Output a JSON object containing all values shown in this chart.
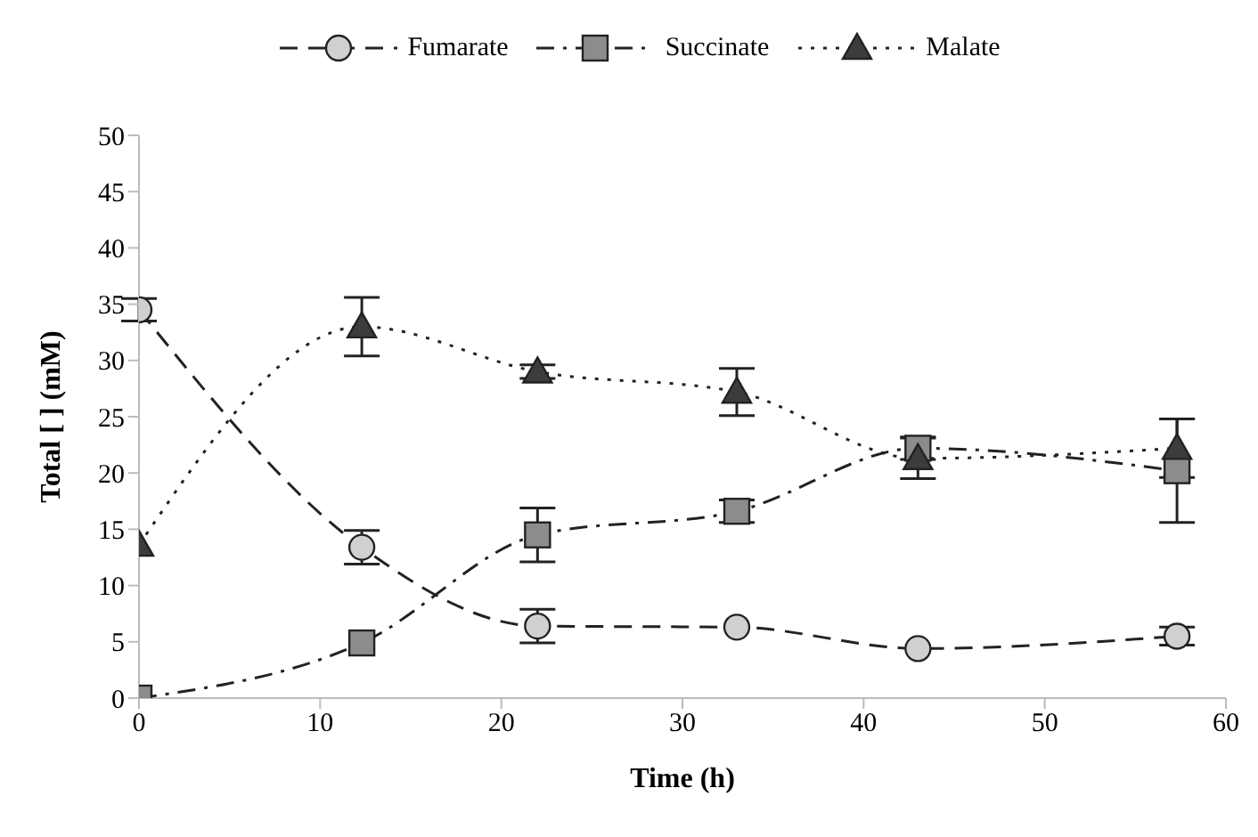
{
  "chart_data": {
    "type": "line",
    "xlabel": "Time (h)",
    "ylabel": "Total [ ] (mM)",
    "x": [
      0,
      12.3,
      22,
      33,
      43,
      57.3
    ],
    "xlim": [
      0,
      60
    ],
    "xticks": [
      0,
      10,
      20,
      30,
      40,
      50,
      60
    ],
    "ylim": [
      0,
      50
    ],
    "yticks": [
      0,
      5,
      10,
      15,
      20,
      25,
      30,
      35,
      40,
      45,
      50
    ],
    "grid": false,
    "legend": "top",
    "series": [
      {
        "name": "Fumarate",
        "color": "#d0d0d0",
        "marker": "circle",
        "line_style": "dashed",
        "values": [
          34.5,
          13.4,
          6.4,
          6.3,
          4.4,
          5.5
        ],
        "errors": [
          1,
          1.5,
          1.5,
          null,
          null,
          0.8
        ]
      },
      {
        "name": "Succinate",
        "color": "#8c8c8c",
        "marker": "square",
        "line_style": "dashdot",
        "values": [
          0,
          4.9,
          14.5,
          16.6,
          22.2,
          20.2
        ],
        "errors": [
          null,
          null,
          2.4,
          1,
          1,
          4.6
        ]
      },
      {
        "name": "Malate",
        "color": "#3c3c3c",
        "marker": "triangle",
        "line_style": "dotted",
        "values": [
          13.6,
          33,
          29,
          27.2,
          21.3,
          22.2
        ],
        "errors": [
          null,
          2.6,
          0.6,
          2.1,
          1.8,
          2.6
        ]
      }
    ]
  }
}
